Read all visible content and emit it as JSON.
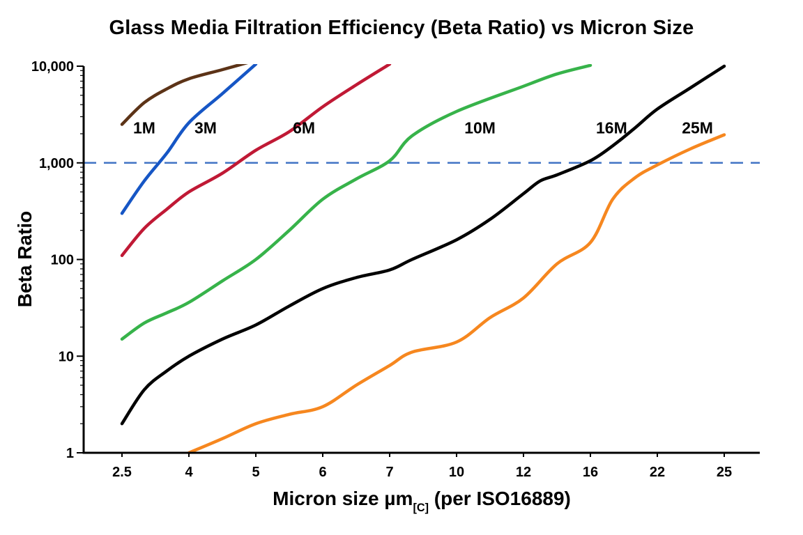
{
  "title": "Glass Media Filtration Efficiency (Beta Ratio) vs Micron Size",
  "axis": {
    "ylabel": "Beta Ratio",
    "xlabel_prefix": "Micron size µm",
    "xlabel_sub": "[C]",
    "xlabel_suffix": " (per ISO16889)"
  },
  "chart_data": {
    "type": "line",
    "title": "Glass Media Filtration Efficiency (Beta Ratio) vs Micron Size",
    "xlabel": "Micron size µm[C] (per ISO16889)",
    "ylabel": "Beta Ratio",
    "y_scale": "log",
    "ylim": [
      1,
      10000
    ],
    "y_ticks": [
      1,
      10,
      100,
      1000,
      10000
    ],
    "y_tick_labels": [
      "1",
      "10",
      "100",
      "1,000",
      "10,000"
    ],
    "x_ticks": [
      2.5,
      4,
      5,
      6,
      7,
      10,
      12,
      16,
      22,
      25
    ],
    "x_tick_labels": [
      "2.5",
      "4",
      "5",
      "6",
      "7",
      "10",
      "12",
      "16",
      "22",
      "25"
    ],
    "grid": false,
    "legend_position": "inline-labels",
    "reference_line": {
      "y": 1000,
      "color": "#4173C4",
      "style": "dashed"
    },
    "series": [
      {
        "name": "1M",
        "color": "#5C3317",
        "label_pos": {
          "x": 3.0,
          "y": 2300
        },
        "points": [
          [
            2.5,
            2500
          ],
          [
            3,
            4200
          ],
          [
            3.5,
            5800
          ],
          [
            4,
            7400
          ],
          [
            4.5,
            9200
          ],
          [
            5,
            11500
          ]
        ]
      },
      {
        "name": "3M",
        "color": "#1656C5",
        "label_pos": {
          "x": 4.25,
          "y": 2300
        },
        "points": [
          [
            2.5,
            300
          ],
          [
            3,
            650
          ],
          [
            3.5,
            1250
          ],
          [
            4,
            2600
          ],
          [
            4.5,
            5200
          ],
          [
            5,
            10500
          ]
        ]
      },
      {
        "name": "6M",
        "color": "#C01935",
        "label_pos": {
          "x": 5.72,
          "y": 2300
        },
        "points": [
          [
            2.5,
            110
          ],
          [
            3,
            210
          ],
          [
            3.5,
            330
          ],
          [
            4,
            500
          ],
          [
            4.5,
            780
          ],
          [
            5,
            1350
          ],
          [
            5.5,
            2100
          ],
          [
            6,
            3800
          ],
          [
            6.5,
            6400
          ],
          [
            7,
            10500
          ]
        ]
      },
      {
        "name": "10M",
        "color": "#37B34A",
        "label_pos": {
          "x": 10.7,
          "y": 2300
        },
        "points": [
          [
            2.5,
            15
          ],
          [
            3,
            22
          ],
          [
            3.5,
            28
          ],
          [
            4,
            36
          ],
          [
            4.5,
            60
          ],
          [
            5,
            100
          ],
          [
            5.5,
            200
          ],
          [
            6,
            420
          ],
          [
            6.5,
            680
          ],
          [
            7,
            1050
          ],
          [
            8,
            1900
          ],
          [
            10,
            3400
          ],
          [
            12,
            6200
          ],
          [
            14,
            8300
          ],
          [
            16,
            10200
          ]
        ]
      },
      {
        "name": "16M",
        "color": "#000000",
        "label_pos": {
          "x": 17.9,
          "y": 2300
        },
        "points": [
          [
            2.5,
            2
          ],
          [
            3,
            4.5
          ],
          [
            3.5,
            7
          ],
          [
            4,
            10
          ],
          [
            4.5,
            15
          ],
          [
            5,
            21
          ],
          [
            5.5,
            33
          ],
          [
            6,
            50
          ],
          [
            6.5,
            65
          ],
          [
            7,
            78
          ],
          [
            8,
            100
          ],
          [
            10,
            160
          ],
          [
            11,
            260
          ],
          [
            12,
            480
          ],
          [
            13,
            650
          ],
          [
            14,
            750
          ],
          [
            16,
            1050
          ],
          [
            18,
            1500
          ],
          [
            20,
            2300
          ],
          [
            22,
            3600
          ],
          [
            23.5,
            6000
          ],
          [
            25,
            10000
          ]
        ]
      },
      {
        "name": "25M",
        "color": "#F6871F",
        "label_pos": {
          "x": 23.8,
          "y": 2300
        },
        "points": [
          [
            4,
            1
          ],
          [
            4.5,
            1.4
          ],
          [
            5,
            2
          ],
          [
            5.5,
            2.5
          ],
          [
            6,
            3
          ],
          [
            6.5,
            5
          ],
          [
            7,
            8
          ],
          [
            8,
            11
          ],
          [
            10,
            14
          ],
          [
            11,
            25
          ],
          [
            12,
            40
          ],
          [
            14,
            90
          ],
          [
            16,
            150
          ],
          [
            18,
            420
          ],
          [
            20,
            700
          ],
          [
            22,
            950
          ],
          [
            23.5,
            1400
          ],
          [
            25,
            1950
          ]
        ]
      }
    ]
  }
}
